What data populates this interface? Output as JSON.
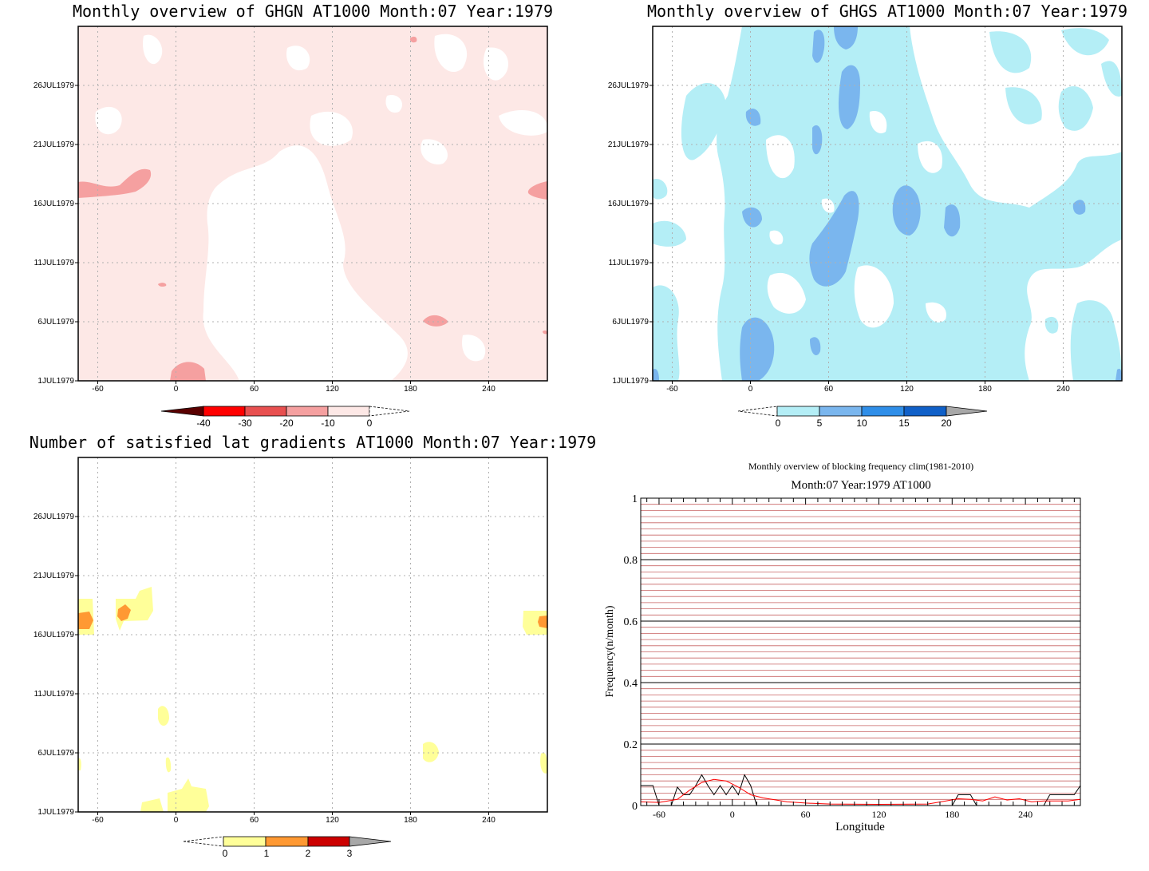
{
  "panels": {
    "ghgn": {
      "title": "Monthly overview of GHGN AT1000 Month:07 Year:1979",
      "colorbar": [
        {
          "label": "-40",
          "color": "#5a0000"
        },
        {
          "label": "-30",
          "color": "#ff0000"
        },
        {
          "label": "-20",
          "color": "#e85050"
        },
        {
          "label": "-10",
          "color": "#f5a0a0"
        },
        {
          "label": "0",
          "color": "#fde8e6"
        }
      ]
    },
    "ghgs": {
      "title": "Monthly overview of GHGS AT1000 Month:07 Year:1979",
      "colorbar": [
        {
          "label": "0",
          "color": "#b4eef6"
        },
        {
          "label": "5",
          "color": "#7ab6ee"
        },
        {
          "label": "10",
          "color": "#2f8ee8"
        },
        {
          "label": "15",
          "color": "#1060c8"
        },
        {
          "label": "20",
          "color": "#a8a8a8"
        }
      ]
    },
    "gradients": {
      "title": "Number of satisfied lat gradients AT1000 Month:07 Year:1979",
      "colorbar": [
        {
          "label": "0",
          "color": "#ffff99"
        },
        {
          "label": "1",
          "color": "#ff9933"
        },
        {
          "label": "2",
          "color": "#cc0000"
        },
        {
          "label": "3",
          "color": "#a8a8a8"
        }
      ]
    }
  },
  "y_dates": [
    "1JUL1979",
    "6JUL1979",
    "11JUL1979",
    "16JUL1979",
    "21JUL1979",
    "26JUL1979"
  ],
  "x_lons": [
    "-60",
    "0",
    "60",
    "120",
    "180",
    "240"
  ],
  "chart_data": [
    {
      "type": "heatmap",
      "title": "Monthly overview of GHGN AT1000 Month:07 Year:1979",
      "x_ticks": [
        -60,
        0,
        60,
        120,
        180,
        240
      ],
      "y_ticks": [
        "1JUL1979",
        "6JUL1979",
        "11JUL1979",
        "16JUL1979",
        "21JUL1979",
        "26JUL1979"
      ],
      "levels": [
        -40,
        -30,
        -20,
        -10,
        0
      ],
      "field_description_values": "mostly between -10 and 0 with small patches between -20 and -10",
      "grid": true
    },
    {
      "type": "heatmap",
      "title": "Monthly overview of GHGS AT1000 Month:07 Year:1979",
      "x_ticks": [
        -60,
        0,
        60,
        120,
        180,
        240
      ],
      "y_ticks": [
        "1JUL1979",
        "6JUL1979",
        "11JUL1979",
        "16JUL1979",
        "21JUL1979",
        "26JUL1979"
      ],
      "levels": [
        0,
        5,
        10,
        15,
        20
      ],
      "grid": true
    },
    {
      "type": "heatmap",
      "title": "Number of satisfied lat gradients AT1000 Month:07 Year:1979",
      "x_ticks": [
        -60,
        0,
        60,
        120,
        180,
        240
      ],
      "y_ticks": [
        "1JUL1979",
        "6JUL1979",
        "11JUL1979",
        "16JUL1979",
        "21JUL1979",
        "26JUL1979"
      ],
      "levels": [
        0,
        1,
        2,
        3
      ],
      "grid": true
    },
    {
      "type": "line",
      "title": "Monthly overview of blocking frequency clim(1981-2010)",
      "subtitle": "Month:07 Year:1979  AT1000",
      "xlabel": "Longitude",
      "ylabel": "Frequency(n/month)",
      "xlim": [
        -75,
        285
      ],
      "ylim": [
        0,
        1
      ],
      "x_ticks": [
        -60,
        0,
        60,
        120,
        180,
        240
      ],
      "y_ticks": [
        0,
        0.2,
        0.4,
        0.6,
        0.8,
        1
      ],
      "series": [
        {
          "color": "#000000",
          "x": [
            -75,
            -65,
            -60,
            -55,
            -50,
            -45,
            -40,
            -35,
            -30,
            -25,
            -20,
            -15,
            -10,
            -5,
            0,
            5,
            10,
            15,
            20,
            60,
            120,
            180,
            185,
            195,
            200,
            250,
            255,
            260,
            270,
            280,
            285
          ],
          "y": [
            0.065,
            0.065,
            0,
            0,
            0,
            0.06,
            0.035,
            0.035,
            0.065,
            0.1,
            0.065,
            0.035,
            0.065,
            0.035,
            0.065,
            0.035,
            0.1,
            0.065,
            0,
            0,
            0,
            0,
            0.035,
            0.035,
            0,
            0,
            0,
            0.035,
            0.035,
            0.035,
            0.065
          ]
        },
        {
          "color": "#ff0000",
          "x": [
            -75,
            -60,
            -45,
            -35,
            -25,
            -15,
            -5,
            5,
            15,
            25,
            45,
            60,
            80,
            120,
            160,
            175,
            185,
            195,
            205,
            215,
            225,
            235,
            245,
            255,
            265,
            275,
            285
          ],
          "y": [
            0.012,
            0.01,
            0.02,
            0.05,
            0.075,
            0.085,
            0.08,
            0.06,
            0.035,
            0.025,
            0.012,
            0.008,
            0.005,
            0.004,
            0.005,
            0.015,
            0.022,
            0.02,
            0.015,
            0.028,
            0.018,
            0.022,
            0.012,
            0.015,
            0.015,
            0.015,
            0.02
          ]
        }
      ],
      "grid": true
    }
  ],
  "line_panel": {
    "title": "Monthly overview of blocking frequency clim(1981-2010)",
    "subtitle": "Month:07 Year:1979  AT1000",
    "xlabel": "Longitude",
    "ylabel": "Frequency(n/month)",
    "yticks": [
      "0",
      "0.2",
      "0.4",
      "0.6",
      "0.8",
      "1"
    ],
    "xticks": [
      "-60",
      "0",
      "60",
      "120",
      "180",
      "240"
    ]
  }
}
